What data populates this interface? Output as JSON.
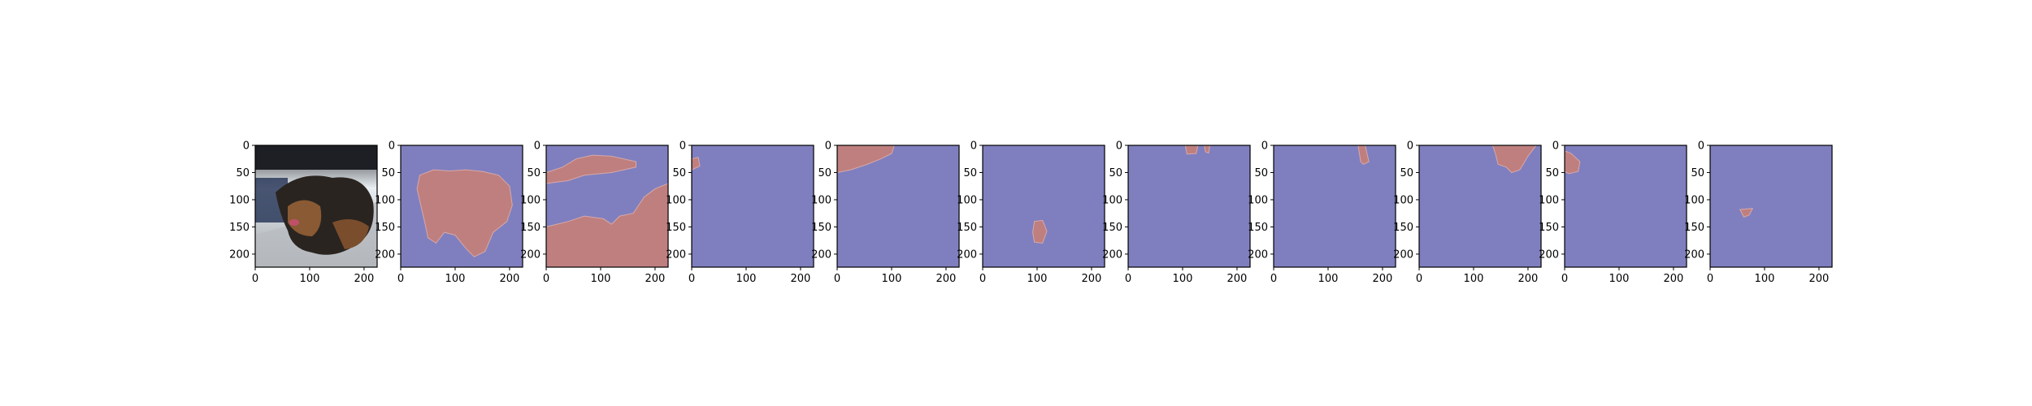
{
  "figure": {
    "panel_count": 11,
    "colors": {
      "background_class": "#7f7fbf",
      "foreground_class": "#bf7f7f",
      "edge": "#d8a8a8"
    }
  },
  "chart_data": {
    "type": "image-grid",
    "title": "",
    "xlabel": "",
    "ylabel": "",
    "xlim": [
      0,
      224
    ],
    "ylim": [
      224,
      0
    ],
    "x_ticks": [
      "0",
      "100",
      "200"
    ],
    "y_ticks": [
      "0",
      "50",
      "100",
      "150",
      "200"
    ],
    "x_tick_values": [
      0,
      100,
      200
    ],
    "y_tick_values": [
      0,
      50,
      100,
      150,
      200
    ],
    "grid": false,
    "legend": "none",
    "panels": [
      {
        "kind": "photo",
        "description_key": "dog-photo"
      },
      {
        "kind": "mask",
        "regions": [
          [
            [
              35,
              55
            ],
            [
              60,
              45
            ],
            [
              90,
              47
            ],
            [
              120,
              45
            ],
            [
              150,
              48
            ],
            [
              180,
              55
            ],
            [
              200,
              75
            ],
            [
              205,
              110
            ],
            [
              195,
              140
            ],
            [
              170,
              160
            ],
            [
              155,
              195
            ],
            [
              135,
              205
            ],
            [
              120,
              190
            ],
            [
              100,
              165
            ],
            [
              80,
              160
            ],
            [
              65,
              180
            ],
            [
              50,
              170
            ],
            [
              45,
              145
            ],
            [
              38,
              115
            ],
            [
              30,
              80
            ]
          ]
        ]
      },
      {
        "kind": "mask",
        "regions": [
          [
            [
              0,
              50
            ],
            [
              30,
              40
            ],
            [
              55,
              25
            ],
            [
              85,
              18
            ],
            [
              120,
              20
            ],
            [
              165,
              30
            ],
            [
              165,
              40
            ],
            [
              120,
              50
            ],
            [
              70,
              55
            ],
            [
              40,
              65
            ],
            [
              0,
              70
            ]
          ],
          [
            [
              0,
              150
            ],
            [
              40,
              140
            ],
            [
              70,
              130
            ],
            [
              105,
              135
            ],
            [
              120,
              145
            ],
            [
              135,
              130
            ],
            [
              160,
              125
            ],
            [
              180,
              95
            ],
            [
              200,
              80
            ],
            [
              224,
              70
            ],
            [
              224,
              224
            ],
            [
              0,
              224
            ]
          ]
        ]
      },
      {
        "kind": "mask",
        "regions": [
          [
            [
              0,
              25
            ],
            [
              12,
              22
            ],
            [
              15,
              38
            ],
            [
              0,
              45
            ]
          ]
        ]
      },
      {
        "kind": "mask",
        "regions": [
          [
            [
              0,
              0
            ],
            [
              105,
              0
            ],
            [
              100,
              15
            ],
            [
              80,
              25
            ],
            [
              55,
              35
            ],
            [
              25,
              45
            ],
            [
              0,
              50
            ]
          ]
        ]
      },
      {
        "kind": "mask",
        "regions": [
          [
            [
              95,
              140
            ],
            [
              110,
              138
            ],
            [
              118,
              158
            ],
            [
              110,
              180
            ],
            [
              95,
              178
            ],
            [
              92,
              160
            ]
          ]
        ]
      },
      {
        "kind": "mask",
        "regions": [
          [
            [
              105,
              0
            ],
            [
              128,
              0
            ],
            [
              125,
              15
            ],
            [
              108,
              16
            ]
          ],
          [
            [
              140,
              0
            ],
            [
              150,
              0
            ],
            [
              148,
              14
            ],
            [
              142,
              12
            ]
          ]
        ]
      },
      {
        "kind": "mask",
        "regions": [
          [
            [
              155,
              0
            ],
            [
              168,
              0
            ],
            [
              175,
              30
            ],
            [
              165,
              35
            ],
            [
              160,
              30
            ]
          ]
        ]
      },
      {
        "kind": "mask",
        "regions": [
          [
            [
              135,
              0
            ],
            [
              215,
              0
            ],
            [
              200,
              20
            ],
            [
              185,
              45
            ],
            [
              170,
              50
            ],
            [
              160,
              40
            ],
            [
              145,
              35
            ],
            [
              140,
              15
            ]
          ]
        ]
      },
      {
        "kind": "mask",
        "regions": [
          [
            [
              0,
              10
            ],
            [
              12,
              15
            ],
            [
              28,
              30
            ],
            [
              25,
              48
            ],
            [
              8,
              52
            ],
            [
              0,
              48
            ]
          ]
        ]
      },
      {
        "kind": "mask",
        "regions": [
          [
            [
              55,
              118
            ],
            [
              78,
              116
            ],
            [
              72,
              128
            ],
            [
              62,
              132
            ]
          ]
        ]
      }
    ]
  }
}
